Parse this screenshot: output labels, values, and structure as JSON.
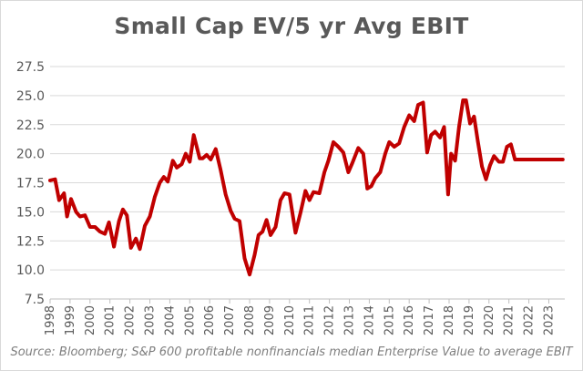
{
  "chart_data": {
    "type": "line",
    "title": "Small Cap EV/5 yr Avg EBIT",
    "source": "Source: Bloomberg; S&P 600 profitable nonfinancials median Enterprise Value to average EBIT",
    "xlabel": "",
    "ylabel": "",
    "ylim": [
      7.5,
      27.5
    ],
    "yticks": [
      "7.5",
      "10.0",
      "12.5",
      "15.0",
      "17.5",
      "20.0",
      "22.5",
      "25.0",
      "27.5"
    ],
    "xticks": [
      "1998",
      "1999",
      "2000",
      "2001",
      "2002",
      "2003",
      "2004",
      "2005",
      "2006",
      "2007",
      "2008",
      "2009",
      "2010",
      "2011",
      "2012",
      "2013",
      "2014",
      "2015",
      "2016",
      "2017",
      "2018",
      "2019",
      "2020",
      "2021",
      "2022",
      "2023"
    ],
    "xlim": [
      1998,
      2023.8
    ],
    "grid": true,
    "legend": "none",
    "line_color": "#c00000",
    "series": [
      {
        "x": [
          1998.0,
          1998.25,
          1998.45,
          1998.7,
          1998.85,
          1999.05,
          1999.3,
          1999.5,
          1999.75,
          2000.0,
          2000.25,
          2000.5,
          2000.75,
          2000.95,
          2001.2,
          2001.45,
          2001.65,
          2001.85,
          2002.05,
          2002.3,
          2002.5,
          2002.75,
          2003.0,
          2003.25,
          2003.5,
          2003.7,
          2003.9,
          2004.15,
          2004.35,
          2004.6,
          2004.8,
          2005.0,
          2005.2,
          2005.5,
          2005.65,
          2005.85,
          2006.05,
          2006.3,
          2006.55,
          2006.8,
          2007.05,
          2007.25,
          2007.5,
          2007.75,
          2008.0,
          2008.25,
          2008.45,
          2008.65,
          2008.85,
          2009.05,
          2009.3,
          2009.55,
          2009.75,
          2010.0,
          2010.3,
          2010.55,
          2010.8,
          2011.0,
          2011.2,
          2011.5,
          2011.75,
          2011.95,
          2012.2,
          2012.45,
          2012.7,
          2012.95,
          2013.15,
          2013.45,
          2013.7,
          2013.9,
          2014.1,
          2014.3,
          2014.55,
          2014.8,
          2015.0,
          2015.25,
          2015.5,
          2015.75,
          2016.0,
          2016.25,
          2016.45,
          2016.7,
          2016.9,
          2017.1,
          2017.3,
          2017.55,
          2017.75,
          2017.95,
          2018.1,
          2018.3,
          2018.5,
          2018.7,
          2018.85,
          2019.05,
          2019.25,
          2019.45,
          2019.65,
          2019.85,
          2020.05,
          2020.25,
          2020.5,
          2020.7,
          2020.9,
          2021.1,
          2021.3,
          2021.5,
          2021.75,
          2022.0,
          2022.25,
          2022.5,
          2022.75,
          2023.0,
          2023.25,
          2023.45,
          2023.7
        ],
        "values": [
          17.7,
          17.8,
          16.0,
          16.6,
          14.6,
          16.1,
          15.0,
          14.6,
          14.7,
          13.7,
          13.7,
          13.3,
          13.1,
          14.1,
          12.0,
          14.2,
          15.2,
          14.7,
          11.9,
          12.7,
          11.8,
          13.8,
          14.6,
          16.3,
          17.5,
          18.0,
          17.6,
          19.4,
          18.8,
          19.1,
          20.0,
          19.3,
          21.6,
          19.6,
          19.6,
          19.9,
          19.5,
          20.4,
          18.6,
          16.5,
          15.1,
          14.4,
          14.2,
          11.0,
          9.6,
          11.3,
          13.0,
          13.3,
          14.3,
          13.0,
          13.7,
          16.0,
          16.6,
          16.5,
          13.2,
          14.9,
          16.8,
          16.0,
          16.7,
          16.6,
          18.4,
          19.4,
          21.0,
          20.6,
          20.1,
          18.4,
          19.2,
          20.5,
          20.0,
          17.0,
          17.2,
          17.9,
          18.4,
          20.0,
          21.0,
          20.6,
          20.9,
          22.3,
          23.3,
          22.8,
          24.2,
          24.4,
          20.1,
          21.6,
          21.9,
          21.4,
          22.3,
          16.5,
          20.0,
          19.4,
          22.3,
          24.6,
          24.6,
          22.6,
          23.2,
          21.0,
          18.9,
          17.8,
          19.0,
          19.8,
          19.3,
          19.3,
          20.6,
          20.8,
          19.5,
          19.5,
          19.5,
          19.5,
          19.5,
          19.5,
          19.5,
          19.5,
          19.5,
          19.5,
          19.5
        ]
      }
    ]
  }
}
